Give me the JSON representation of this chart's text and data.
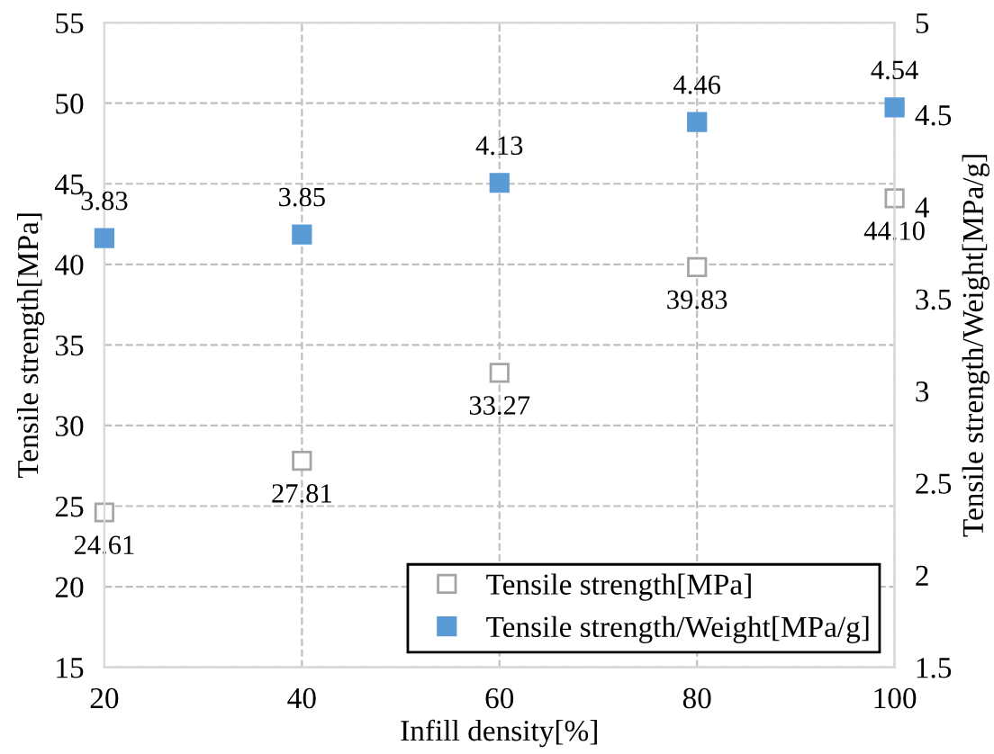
{
  "chart_data": {
    "type": "scatter",
    "xlabel": "Infill density[%]",
    "ylabel": "Tensile strength[MPa]",
    "y2label": "Tensile strength/Weight[MPa/g]",
    "x": [
      20,
      40,
      60,
      80,
      100
    ],
    "series": [
      {
        "name": "Tensile strength[MPa]",
        "color": "#a5a5a5",
        "values": [
          24.61,
          27.81,
          33.27,
          39.83,
          44.1
        ],
        "value_labels": [
          "24.61",
          "27.81",
          "33.27",
          "39.83",
          "44.10"
        ]
      },
      {
        "name": "Tensile strength/Weight[MPa/g]",
        "color": "#5b9bd5",
        "axis": "y2",
        "values": [
          3.83,
          3.85,
          4.13,
          4.46,
          4.54
        ],
        "value_labels": [
          "3.83",
          "3.85",
          "4.13",
          "4.46",
          "4.54"
        ]
      }
    ],
    "xlim": [
      20,
      100
    ],
    "xticks": [
      20,
      40,
      60,
      80,
      100
    ],
    "ylim": [
      15,
      55
    ],
    "yticks": [
      15,
      20,
      25,
      30,
      35,
      40,
      45,
      50,
      55
    ],
    "y2lim": [
      1.5,
      5
    ],
    "y2ticks": [
      1.5,
      2,
      2.5,
      3,
      3.5,
      4,
      4.5,
      5
    ],
    "grid": true,
    "legend": "bottom right",
    "marker": "square"
  }
}
